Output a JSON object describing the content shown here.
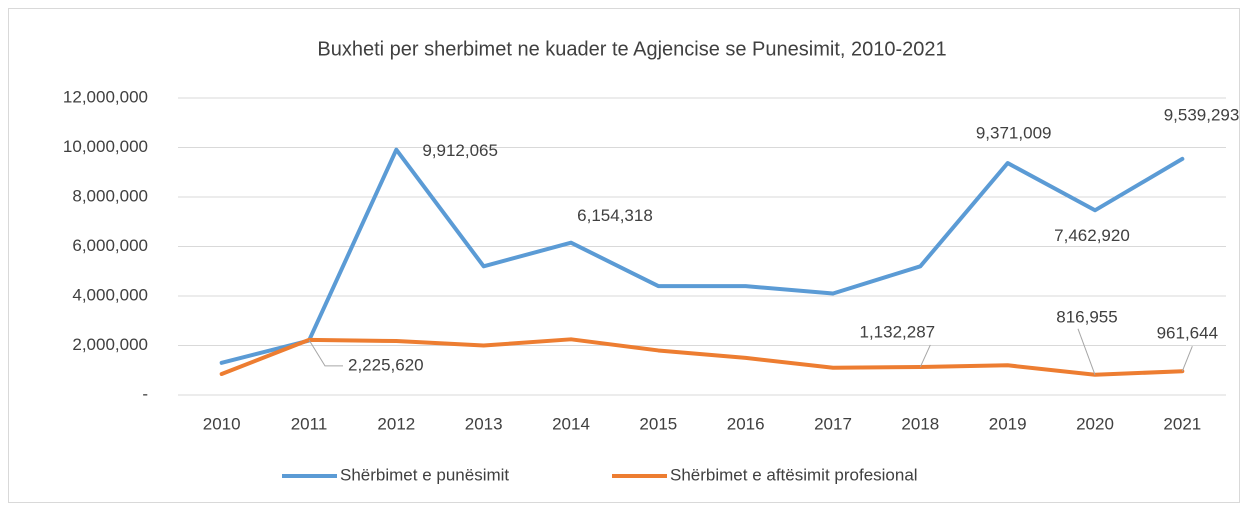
{
  "chart_data": {
    "type": "line",
    "title": "Buxheti per sherbimet ne kuader te Agjencise se Punesimit, 2010-2021",
    "categories": [
      "2010",
      "2011",
      "2012",
      "2013",
      "2014",
      "2015",
      "2016",
      "2017",
      "2018",
      "2019",
      "2020",
      "2021"
    ],
    "series": [
      {
        "name": "Shërbimet e punësimit",
        "color": "#5b9bd5",
        "values": [
          1300000,
          2200000,
          9912065,
          5200000,
          6154318,
          4400000,
          4400000,
          4100000,
          5200000,
          9371009,
          7462920,
          9539293
        ],
        "value_labels": [
          null,
          null,
          "9,912,065",
          null,
          "6,154,318",
          null,
          null,
          null,
          null,
          "9,371,009",
          "7,462,920",
          "9,539,293"
        ]
      },
      {
        "name": "Shërbimet e aftësimit profesional",
        "color": "#ed7d31",
        "values": [
          850000,
          2225620,
          2180000,
          2000000,
          2250000,
          1800000,
          1500000,
          1100000,
          1132287,
          1200000,
          816955,
          961644
        ],
        "value_labels": [
          null,
          "2,225,620",
          null,
          null,
          null,
          null,
          null,
          null,
          "1,132,287",
          null,
          "816,955",
          "961,644"
        ]
      }
    ],
    "ylim": [
      0,
      12000000
    ],
    "yticks": [
      {
        "value": 0,
        "label": "-"
      },
      {
        "value": 2000000,
        "label": "2,000,000"
      },
      {
        "value": 4000000,
        "label": "4,000,000"
      },
      {
        "value": 6000000,
        "label": "6,000,000"
      },
      {
        "value": 8000000,
        "label": "8,000,000"
      },
      {
        "value": 10000000,
        "label": "10,000,000"
      },
      {
        "value": 12000000,
        "label": "12,000,000"
      }
    ],
    "grid": true,
    "legend": "bottom"
  }
}
